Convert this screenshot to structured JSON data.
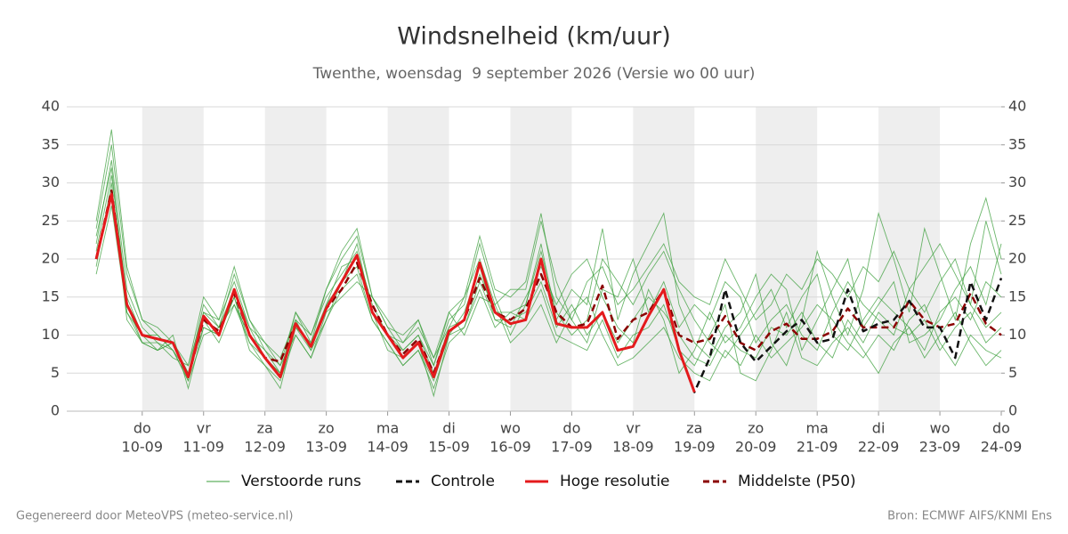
{
  "chart_data": {
    "type": "line",
    "title": "Windsnelheid (km/uur)",
    "subtitle": "Twenthe, woensdag  9 september 2026 (Versie wo 00 uur)",
    "footer_left": "Gegenereerd door MeteoVPS (meteo-service.nl)",
    "footer_right": "Bron: ECMWF AIFS/KNMI Ens",
    "xlim": [
      8.77,
      24
    ],
    "xticks": [
      {
        "value": 10,
        "label": "10-09"
      },
      {
        "value": 11,
        "label": "11-09"
      },
      {
        "value": 12,
        "label": "12-09"
      },
      {
        "value": 13,
        "label": "13-09"
      },
      {
        "value": 14,
        "label": "14-09"
      },
      {
        "value": 15,
        "label": "15-09"
      },
      {
        "value": 16,
        "label": "16-09"
      },
      {
        "value": 17,
        "label": "17-09"
      },
      {
        "value": 18,
        "label": "18-09"
      },
      {
        "value": 19,
        "label": "19-09"
      },
      {
        "value": 20,
        "label": "20-09"
      },
      {
        "value": 21,
        "label": "21-09"
      },
      {
        "value": 22,
        "label": "22-09"
      },
      {
        "value": 23,
        "label": "23-09"
      },
      {
        "value": 24,
        "label": "24-09"
      }
    ],
    "xtick_weekdays": [
      "do",
      "vr",
      "za",
      "zo",
      "ma",
      "di",
      "wo",
      "do",
      "vr",
      "za",
      "zo",
      "ma",
      "di",
      "wo",
      "do"
    ],
    "shaded_days": [
      10,
      12,
      14,
      16,
      18,
      20,
      22
    ],
    "ylim": [
      0,
      40
    ],
    "yticks": [
      0,
      5,
      10,
      15,
      20,
      25,
      30,
      35,
      40
    ],
    "y2lim": [
      0,
      40
    ],
    "y2ticks": [
      0,
      5,
      10,
      15,
      20,
      25,
      30,
      35,
      40
    ],
    "grid": true,
    "x": [
      9.25,
      9.5,
      9.75,
      10,
      10.25,
      10.5,
      10.75,
      11,
      11.25,
      11.5,
      11.75,
      12,
      12.25,
      12.5,
      12.75,
      13,
      13.25,
      13.5,
      13.75,
      14,
      14.25,
      14.5,
      14.75,
      15,
      15.25,
      15.5,
      15.75,
      16,
      16.25,
      16.5,
      16.75,
      17,
      17.25,
      17.5,
      17.75,
      18,
      18.25,
      18.5,
      18.75,
      19,
      19.25,
      19.5,
      19.75,
      20,
      20.25,
      20.5,
      20.75,
      21,
      21.25,
      21.5,
      21.75,
      22,
      22.25,
      22.5,
      22.75,
      23,
      23.25,
      23.5,
      23.75,
      24
    ],
    "ensemble": {
      "name": "Verstoorde runs",
      "color": "#3a9e3a",
      "runs": [
        [
          24,
          35,
          18,
          12,
          10,
          8,
          5,
          14,
          11,
          18,
          12,
          8,
          5,
          13,
          9,
          16,
          20,
          23,
          15,
          11,
          8,
          10,
          6,
          12,
          14,
          22,
          15,
          10,
          14,
          22,
          12,
          16,
          14,
          24,
          12,
          18,
          22,
          26,
          14,
          9,
          7,
          11,
          13,
          18,
          9,
          6,
          12,
          21,
          15,
          10,
          16,
          26,
          20,
          13,
          24,
          18,
          12,
          22,
          28,
          20
        ],
        [
          19,
          30,
          12,
          9,
          8,
          10,
          3,
          11,
          10,
          15,
          8,
          6,
          4,
          10,
          7,
          12,
          16,
          18,
          12,
          9,
          6,
          8,
          3,
          9,
          11,
          16,
          11,
          13,
          12,
          16,
          10,
          9,
          8,
          12,
          7,
          10,
          11,
          14,
          8,
          6,
          10,
          14,
          5,
          4,
          8,
          13,
          7,
          6,
          9,
          11,
          8,
          5,
          9,
          11,
          7,
          10,
          13,
          9,
          6,
          8
        ],
        [
          22,
          33,
          16,
          11,
          9,
          7,
          6,
          13,
          12,
          17,
          11,
          9,
          7,
          12,
          10,
          15,
          18,
          21,
          14,
          10,
          9,
          11,
          7,
          11,
          15,
          20,
          14,
          16,
          16,
          25,
          17,
          12,
          9,
          16,
          15,
          20,
          13,
          17,
          11,
          14,
          12,
          17,
          15,
          9,
          12,
          14,
          10,
          8,
          13,
          17,
          14,
          12,
          10,
          16,
          13,
          17,
          20,
          14,
          11,
          13
        ],
        [
          21,
          31,
          15,
          10,
          8,
          9,
          5,
          12,
          9,
          14,
          9,
          6,
          3,
          11,
          9,
          14,
          17,
          22,
          13,
          8,
          7,
          9,
          2,
          10,
          13,
          19,
          12,
          11,
          15,
          19,
          14,
          18,
          20,
          15,
          11,
          9,
          16,
          12,
          5,
          8,
          13,
          9,
          11,
          15,
          18,
          16,
          8,
          12,
          16,
          20,
          11,
          14,
          17,
          9,
          10,
          12,
          16,
          19,
          14,
          22
        ],
        [
          18,
          27,
          13,
          10,
          10,
          8,
          4,
          10,
          11,
          14,
          10,
          8,
          6,
          10,
          7,
          13,
          15,
          17,
          15,
          11,
          10,
          12,
          6,
          13,
          10,
          15,
          14,
          9,
          11,
          14,
          9,
          13,
          15,
          10,
          6,
          7,
          9,
          11,
          7,
          5,
          4,
          8,
          6,
          10,
          7,
          9,
          11,
          14,
          12,
          9,
          7,
          10,
          8,
          12,
          14,
          9,
          6,
          10,
          8,
          7
        ],
        [
          23,
          32,
          14,
          9,
          9,
          8,
          4,
          13,
          11,
          16,
          11,
          7,
          5,
          12,
          8,
          14,
          19,
          20,
          13,
          10,
          8,
          10,
          5,
          11,
          12,
          18,
          13,
          13,
          14,
          21,
          13,
          10,
          12,
          20,
          17,
          14,
          18,
          21,
          16,
          12,
          9,
          7,
          10,
          13,
          16,
          11,
          15,
          18,
          10,
          8,
          12,
          15,
          13,
          11,
          8,
          13,
          15,
          12,
          17,
          15
        ],
        [
          20,
          28,
          13,
          9,
          8,
          9,
          5,
          11,
          10,
          15,
          9,
          7,
          5,
          11,
          8,
          12,
          17,
          19,
          12,
          9,
          6,
          8,
          4,
          10,
          11,
          17,
          12,
          12,
          13,
          17,
          11,
          14,
          10,
          13,
          9,
          12,
          15,
          13,
          10,
          7,
          6,
          10,
          8,
          7,
          11,
          10,
          13,
          9,
          7,
          12,
          9,
          13,
          11,
          10,
          12,
          8,
          11,
          13,
          9,
          11
        ],
        [
          25,
          37,
          19,
          12,
          11,
          9,
          6,
          15,
          12,
          19,
          12,
          9,
          6,
          13,
          10,
          16,
          21,
          24,
          15,
          12,
          9,
          12,
          7,
          13,
          15,
          23,
          16,
          15,
          17,
          26,
          15,
          12,
          17,
          19,
          14,
          16,
          19,
          22,
          17,
          15,
          14,
          20,
          16,
          12,
          14,
          18,
          16,
          20,
          18,
          15,
          19,
          17,
          21,
          16,
          19,
          22,
          18,
          14,
          25,
          18
        ]
      ]
    },
    "series": [
      {
        "name": "Controle",
        "color": "#111111",
        "dash": true,
        "values": [
          20,
          28.5,
          14,
          10,
          9.5,
          9,
          4.5,
          12.5,
          10,
          16,
          10,
          7,
          4.5,
          11.5,
          8.5,
          13.5,
          17,
          20.5,
          13,
          10,
          7,
          9,
          4.5,
          10.5,
          12,
          19.5,
          13,
          11.5,
          12,
          20,
          11.5,
          11,
          11,
          13,
          8,
          8.5,
          12.5,
          16,
          8,
          2.5,
          7,
          16,
          9,
          6.5,
          8.5,
          10.5,
          12,
          9,
          9.5,
          16,
          10.5,
          11.5,
          12,
          14.5,
          11,
          11,
          7,
          17,
          12,
          17.5
        ]
      },
      {
        "name": "Hoge resolutie",
        "color": "#e41a1c",
        "dash": false,
        "values": [
          20,
          28.5,
          14,
          10,
          9.5,
          9,
          4.5,
          12.5,
          10,
          16,
          10,
          7,
          4.5,
          11.5,
          8.5,
          13.5,
          17,
          20.5,
          13,
          10,
          7,
          9,
          4.5,
          10.5,
          12,
          19.5,
          13,
          11.5,
          12,
          20,
          11.5,
          11,
          11,
          13,
          8,
          8.5,
          12.5,
          16,
          8,
          2.5,
          null,
          null,
          null,
          null,
          null,
          null,
          null,
          null,
          null,
          null,
          null,
          null,
          null,
          null,
          null,
          null,
          null,
          null,
          null,
          null
        ]
      },
      {
        "name": "Middelste (P50)",
        "color": "#8b0000",
        "dash": true,
        "values": [
          20,
          29,
          14,
          10,
          9.5,
          9,
          4.5,
          12,
          10.5,
          15.5,
          10,
          7,
          6.5,
          11.5,
          8.5,
          13.5,
          16,
          19.5,
          14,
          10,
          7.5,
          9.5,
          5,
          10.5,
          12,
          17.5,
          13,
          12,
          13.5,
          18,
          13,
          11,
          11.5,
          16.5,
          9.5,
          12,
          13,
          16,
          10,
          9,
          9.5,
          12.5,
          9,
          8,
          10.5,
          11.5,
          9.5,
          9.5,
          10.5,
          13.5,
          11,
          11,
          11,
          14.5,
          12,
          11,
          11.5,
          15.5,
          11.5,
          10
        ]
      }
    ]
  }
}
